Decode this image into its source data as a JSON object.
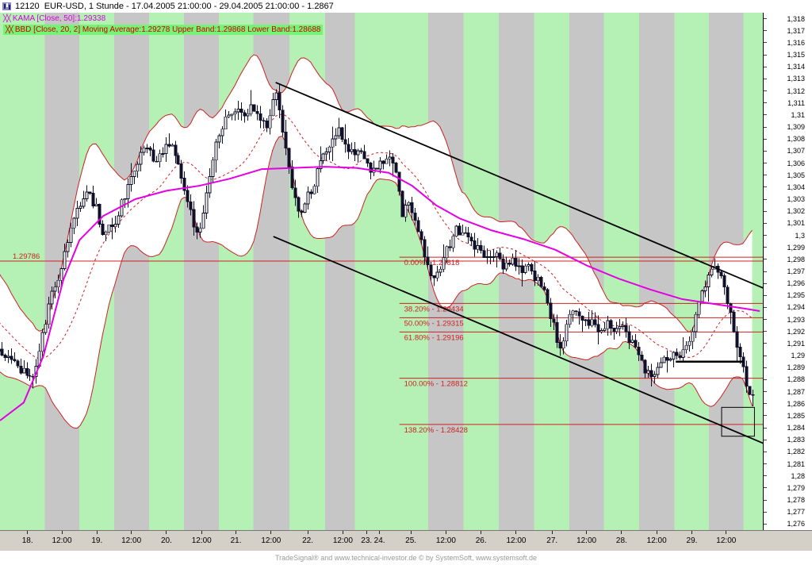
{
  "header": {
    "title": "12120  EUR-USD, 1 Stunde - 17.04.2005 21:00:00 - 29.04.2005 21:00:00 - 1.2867"
  },
  "legend": {
    "kama": {
      "swatch": "╳╳",
      "text": "KAMA [Close, 50]:1.29338"
    },
    "bbd": {
      "swatch": "╳╳",
      "text": "BBD [Close, 20, 2] Moving Average:1.29278 Upper Band:1.29868 Lower Band:1.28688"
    }
  },
  "footer": {
    "credit": "TradeSignal® and www.technical-investor.de © by SystemSoft, www.systemsoft.de"
  },
  "chart_data": {
    "type": "candlestick",
    "instrument": "EUR-USD",
    "interval": "1 Stunde",
    "period": "17.04.2005 21:00:00 - 29.04.2005 21:00:00",
    "last": 1.2867,
    "grid": false,
    "legend_position": "top-left",
    "indicators": {
      "kama": {
        "name": "KAMA [Close, 50]",
        "value": 1.29338
      },
      "bollinger": {
        "name": "BBD [Close, 20, 2]",
        "moving_average": 1.29278,
        "upper_band": 1.29868,
        "lower_band": 1.28688
      }
    },
    "y_axis": {
      "min": 1.276,
      "max": 1.318,
      "step": 0.001,
      "labels": [
        "1,318",
        "1,317",
        "1,316",
        "1,315",
        "1,314",
        "1,313",
        "1,312",
        "1,311",
        "1,31",
        "1,309",
        "1,308",
        "1,307",
        "1,306",
        "1,305",
        "1,304",
        "1,303",
        "1,302",
        "1,301",
        "1,3",
        "1,299",
        "1,298",
        "1,297",
        "1,296",
        "1,295",
        "1,294",
        "1,293",
        "1,292",
        "1,291",
        "1,29",
        "1,289",
        "1,288",
        "1,287",
        "1,286",
        "1,285",
        "1,284",
        "1,283",
        "1,282",
        "1,281",
        "1,28",
        "1,279",
        "1,278",
        "1,277",
        "1,276"
      ]
    },
    "x_axis": [
      {
        "label": "18.",
        "t": 0.036,
        "kind": "day"
      },
      {
        "label": "12:00",
        "t": 0.081,
        "kind": "half"
      },
      {
        "label": "19.",
        "t": 0.127,
        "kind": "day"
      },
      {
        "label": "12:00",
        "t": 0.172,
        "kind": "half"
      },
      {
        "label": "20.",
        "t": 0.218,
        "kind": "day"
      },
      {
        "label": "12:00",
        "t": 0.264,
        "kind": "half"
      },
      {
        "label": "21.",
        "t": 0.309,
        "kind": "day"
      },
      {
        "label": "12:00",
        "t": 0.355,
        "kind": "half"
      },
      {
        "label": "22.",
        "t": 0.403,
        "kind": "day"
      },
      {
        "label": "12:00",
        "t": 0.449,
        "kind": "half"
      },
      {
        "label": "23.",
        "t": 0.48,
        "kind": "day"
      },
      {
        "label": "24.",
        "t": 0.497,
        "kind": "day"
      },
      {
        "label": "25.",
        "t": 0.538,
        "kind": "day"
      },
      {
        "label": "12:00",
        "t": 0.584,
        "kind": "half"
      },
      {
        "label": "26.",
        "t": 0.63,
        "kind": "day"
      },
      {
        "label": "12:00",
        "t": 0.676,
        "kind": "half"
      },
      {
        "label": "27.",
        "t": 0.723,
        "kind": "day"
      },
      {
        "label": "12:00",
        "t": 0.768,
        "kind": "half"
      },
      {
        "label": "28.",
        "t": 0.814,
        "kind": "day"
      },
      {
        "label": "12:00",
        "t": 0.86,
        "kind": "half"
      },
      {
        "label": "29.",
        "t": 0.906,
        "kind": "day"
      },
      {
        "label": "12:00",
        "t": 0.951,
        "kind": "half"
      }
    ],
    "hline": {
      "price": 1.29786,
      "label": "1.29786"
    },
    "fibonacci": {
      "start_t": 0.523,
      "levels": [
        {
          "label": "0.00% - 1.29818",
          "price": 1.29818
        },
        {
          "label": "38.20% - 1.29434",
          "price": 1.29434
        },
        {
          "label": "50.00% - 1.29315",
          "price": 1.29315
        },
        {
          "label": "61.80% - 1.29196",
          "price": 1.29196
        },
        {
          "label": "100.00% - 1.28812",
          "price": 1.28812
        },
        {
          "label": "138.20% - 1.28428",
          "price": 1.28428
        }
      ]
    },
    "trend_lines": [
      {
        "t1": 0.361,
        "p1": 1.3127,
        "t2": 1.0,
        "p2": 1.2956
      },
      {
        "t1": 0.358,
        "p1": 1.2999,
        "t2": 1.0,
        "p2": 1.2827
      }
    ],
    "support_line": {
      "t1": 0.885,
      "t2": 0.974,
      "price": 1.2895
    },
    "box_annotation": {
      "t1": 0.945,
      "t2": 0.988,
      "p_top": 1.2857,
      "p_bottom": 1.2833
    },
    "price_path": [
      [
        -0.085,
        1.2965
      ],
      [
        -0.05,
        1.2935
      ],
      [
        -0.02,
        1.2908
      ],
      [
        0.0,
        1.29
      ],
      [
        0.021,
        1.2892
      ],
      [
        0.042,
        1.2879
      ],
      [
        0.055,
        1.2915
      ],
      [
        0.068,
        1.295
      ],
      [
        0.083,
        1.298
      ],
      [
        0.099,
        1.302
      ],
      [
        0.114,
        1.3035
      ],
      [
        0.125,
        1.3025
      ],
      [
        0.135,
        1.3
      ],
      [
        0.15,
        1.3012
      ],
      [
        0.166,
        1.304
      ],
      [
        0.182,
        1.3065
      ],
      [
        0.192,
        1.3075
      ],
      [
        0.203,
        1.3058
      ],
      [
        0.218,
        1.308
      ],
      [
        0.229,
        1.3068
      ],
      [
        0.244,
        1.303
      ],
      [
        0.259,
        1.2998
      ],
      [
        0.27,
        1.3032
      ],
      [
        0.28,
        1.307
      ],
      [
        0.291,
        1.3092
      ],
      [
        0.306,
        1.3108
      ],
      [
        0.317,
        1.3098
      ],
      [
        0.327,
        1.3108
      ],
      [
        0.338,
        1.3098
      ],
      [
        0.348,
        1.3088
      ],
      [
        0.361,
        1.3122
      ],
      [
        0.369,
        1.309
      ],
      [
        0.379,
        1.3048
      ],
      [
        0.39,
        1.302
      ],
      [
        0.4,
        1.3028
      ],
      [
        0.411,
        1.3045
      ],
      [
        0.421,
        1.3062
      ],
      [
        0.432,
        1.3076
      ],
      [
        0.444,
        1.309
      ],
      [
        0.457,
        1.3065
      ],
      [
        0.467,
        1.3073
      ],
      [
        0.478,
        1.3058
      ],
      [
        0.49,
        1.3055
      ],
      [
        0.501,
        1.306
      ],
      [
        0.509,
        1.3066
      ],
      [
        0.519,
        1.3048
      ],
      [
        0.526,
        1.3018
      ],
      [
        0.533,
        1.3032
      ],
      [
        0.541,
        1.3014
      ],
      [
        0.551,
        1.2994
      ],
      [
        0.56,
        1.2972
      ],
      [
        0.566,
        1.296
      ],
      [
        0.577,
        1.2976
      ],
      [
        0.588,
        1.2992
      ],
      [
        0.598,
        1.3006
      ],
      [
        0.608,
        1.2999
      ],
      [
        0.619,
        1.2993
      ],
      [
        0.629,
        1.2988
      ],
      [
        0.639,
        1.2981
      ],
      [
        0.65,
        1.2986
      ],
      [
        0.66,
        1.2974
      ],
      [
        0.67,
        1.2982
      ],
      [
        0.681,
        1.2969
      ],
      [
        0.691,
        1.2973
      ],
      [
        0.701,
        1.2963
      ],
      [
        0.711,
        1.2958
      ],
      [
        0.719,
        1.2938
      ],
      [
        0.727,
        1.2918
      ],
      [
        0.734,
        1.2908
      ],
      [
        0.742,
        1.2928
      ],
      [
        0.752,
        1.294
      ],
      [
        0.763,
        1.2924
      ],
      [
        0.773,
        1.2931
      ],
      [
        0.783,
        1.2917
      ],
      [
        0.794,
        1.2928
      ],
      [
        0.804,
        1.2919
      ],
      [
        0.814,
        1.2926
      ],
      [
        0.825,
        1.2913
      ],
      [
        0.835,
        1.2905
      ],
      [
        0.845,
        1.2889
      ],
      [
        0.856,
        1.2884
      ],
      [
        0.866,
        1.2896
      ],
      [
        0.877,
        1.2901
      ],
      [
        0.887,
        1.2897
      ],
      [
        0.898,
        1.2906
      ],
      [
        0.908,
        1.2926
      ],
      [
        0.918,
        1.2952
      ],
      [
        0.928,
        1.2968
      ],
      [
        0.934,
        1.2976
      ],
      [
        0.94,
        1.297
      ],
      [
        0.947,
        1.2957
      ],
      [
        0.954,
        1.2938
      ],
      [
        0.961,
        1.2917
      ],
      [
        0.968,
        1.2898
      ],
      [
        0.975,
        1.2882
      ],
      [
        0.981,
        1.287
      ],
      [
        0.985,
        1.2867
      ]
    ],
    "kama_path": [
      [
        0.0,
        1.2846
      ],
      [
        0.031,
        1.2861
      ],
      [
        0.057,
        1.29
      ],
      [
        0.083,
        1.2963
      ],
      [
        0.104,
        1.2996
      ],
      [
        0.135,
        1.3016
      ],
      [
        0.177,
        1.303
      ],
      [
        0.218,
        1.3037
      ],
      [
        0.26,
        1.3041
      ],
      [
        0.301,
        1.3047
      ],
      [
        0.343,
        1.3055
      ],
      [
        0.384,
        1.3056
      ],
      [
        0.426,
        1.3057
      ],
      [
        0.467,
        1.3056
      ],
      [
        0.509,
        1.3052
      ],
      [
        0.54,
        1.3041
      ],
      [
        0.571,
        1.3025
      ],
      [
        0.602,
        1.3014
      ],
      [
        0.644,
        1.3004
      ],
      [
        0.685,
        1.2997
      ],
      [
        0.727,
        1.2988
      ],
      [
        0.768,
        1.2975
      ],
      [
        0.81,
        1.2964
      ],
      [
        0.851,
        1.2955
      ],
      [
        0.893,
        1.2947
      ],
      [
        0.934,
        1.2943
      ],
      [
        0.976,
        1.2939
      ],
      [
        0.995,
        1.2937
      ]
    ],
    "colors": {
      "stripe_day": "#b5f0b5",
      "stripe_half": "#c6c6c6",
      "band_fill": "#ffffff",
      "band_line": "#cc2222",
      "kama": "#e300e3",
      "candle": "#10102a",
      "fib": "#cc2222",
      "trend": "#000000",
      "axis_strip": "#d4d0c8"
    }
  }
}
